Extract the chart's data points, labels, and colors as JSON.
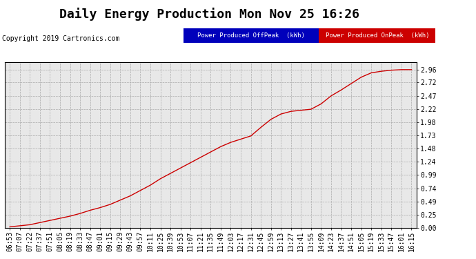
{
  "title": "Daily Energy Production Mon Nov 25 16:26",
  "copyright_text": "Copyright 2019 Cartronics.com",
  "legend_offpeak_label": "Power Produced OffPeak  (kWh)",
  "legend_onpeak_label": "Power Produced OnPeak  (kWh)",
  "offpeak_color": "#0000bb",
  "onpeak_color": "#cc0000",
  "line_color": "#cc0000",
  "background_color": "#ffffff",
  "plot_bg_color": "#e8e8e8",
  "grid_color": "#aaaaaa",
  "yticks": [
    0.0,
    0.25,
    0.49,
    0.74,
    0.99,
    1.24,
    1.48,
    1.73,
    1.98,
    2.22,
    2.47,
    2.72,
    2.96
  ],
  "ylim": [
    0.0,
    3.1
  ],
  "title_fontsize": 13,
  "copyright_fontsize": 7,
  "tick_fontsize": 7,
  "xtick_labels": [
    "06:53",
    "07:07",
    "07:22",
    "07:37",
    "07:51",
    "08:05",
    "08:19",
    "08:33",
    "08:47",
    "09:01",
    "09:15",
    "09:29",
    "09:43",
    "09:57",
    "10:11",
    "10:25",
    "10:39",
    "10:53",
    "11:07",
    "11:21",
    "11:35",
    "11:49",
    "12:03",
    "12:17",
    "12:31",
    "12:45",
    "12:59",
    "13:13",
    "13:27",
    "13:41",
    "13:55",
    "14:09",
    "14:23",
    "14:37",
    "14:51",
    "15:05",
    "15:19",
    "15:33",
    "15:47",
    "16:01",
    "16:15"
  ],
  "x_data": [
    0,
    1,
    2,
    3,
    4,
    5,
    6,
    7,
    8,
    9,
    10,
    11,
    12,
    13,
    14,
    15,
    16,
    17,
    18,
    19,
    20,
    21,
    22,
    23,
    24,
    25,
    26,
    27,
    28,
    29,
    30,
    31,
    32,
    33,
    34,
    35,
    36,
    37,
    38,
    39,
    40
  ],
  "y_data": [
    0.02,
    0.04,
    0.06,
    0.1,
    0.14,
    0.18,
    0.22,
    0.27,
    0.33,
    0.38,
    0.44,
    0.52,
    0.6,
    0.7,
    0.8,
    0.92,
    1.02,
    1.12,
    1.22,
    1.32,
    1.42,
    1.52,
    1.6,
    1.66,
    1.72,
    1.88,
    2.03,
    2.13,
    2.18,
    2.2,
    2.22,
    2.32,
    2.47,
    2.58,
    2.7,
    2.82,
    2.9,
    2.93,
    2.95,
    2.96,
    2.96
  ]
}
